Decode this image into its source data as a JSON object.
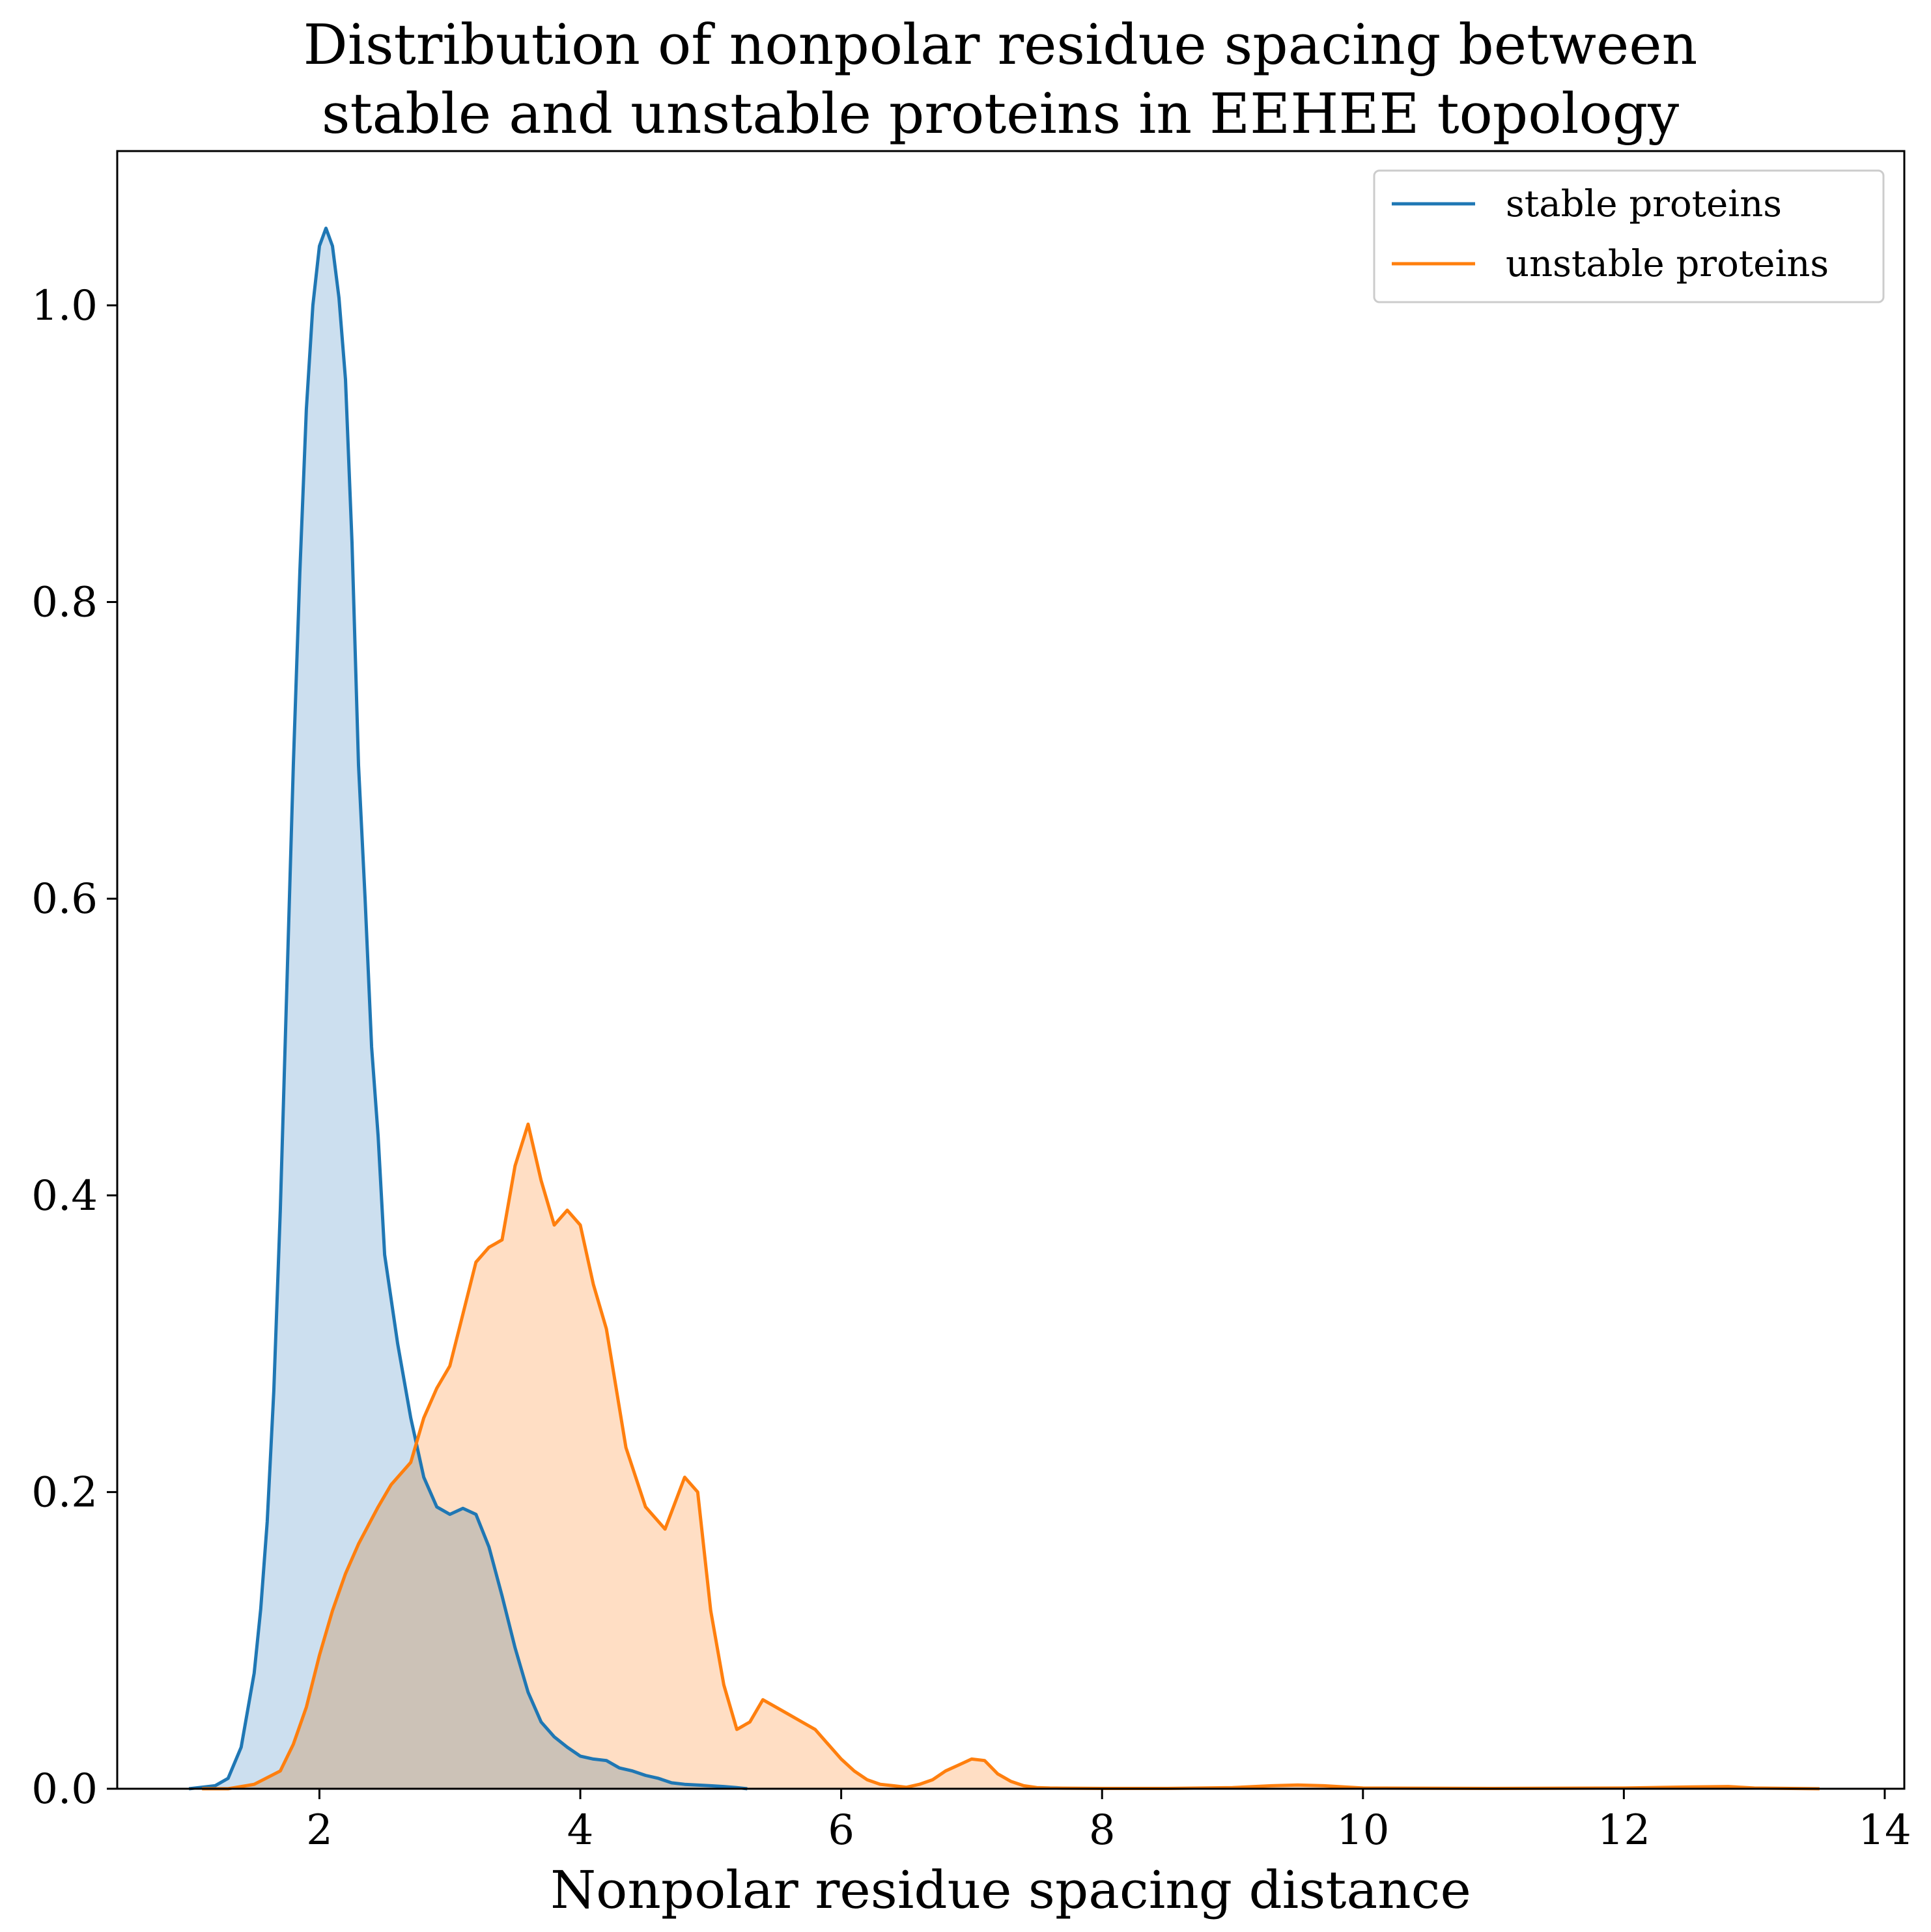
{
  "chart_data": {
    "type": "area",
    "title_lines": [
      "Distribution of nonpolar residue spacing between",
      "stable and unstable proteins in EEHEE topology"
    ],
    "xlabel": "Nonpolar residue spacing distance",
    "ylabel": "",
    "xlim": [
      0.45,
      14.15
    ],
    "ylim": [
      0.0,
      1.104
    ],
    "xticks": [
      2,
      4,
      6,
      8,
      10,
      12,
      14
    ],
    "xtick_labels": [
      "2",
      "4",
      "6",
      "8",
      "10",
      "12",
      "14"
    ],
    "yticks": [
      0.0,
      0.2,
      0.4,
      0.6,
      0.8,
      1.0
    ],
    "ytick_labels": [
      "0.0",
      "0.2",
      "0.4",
      "0.6",
      "0.8",
      "1.0"
    ],
    "grid": false,
    "legend_position": "upper right",
    "series": [
      {
        "name": "stable proteins",
        "color": "#1f77b4",
        "fill_color": "#c6dbed",
        "fill_opacity": 0.9,
        "x": [
          1.0,
          1.2,
          1.3,
          1.4,
          1.5,
          1.55,
          1.6,
          1.65,
          1.7,
          1.75,
          1.8,
          1.85,
          1.9,
          1.95,
          2.0,
          2.05,
          2.1,
          2.15,
          2.2,
          2.25,
          2.3,
          2.35,
          2.4,
          2.45,
          2.5,
          2.55,
          2.6,
          2.7,
          2.8,
          2.9,
          3.0,
          3.1,
          3.2,
          3.3,
          3.4,
          3.5,
          3.6,
          3.7,
          3.8,
          3.9,
          4.0,
          4.1,
          4.2,
          4.3,
          4.4,
          4.5,
          4.6,
          4.7,
          4.8,
          5.0,
          5.1,
          5.2,
          5.28
        ],
        "y": [
          0.0,
          0.002,
          0.007,
          0.028,
          0.078,
          0.121,
          0.18,
          0.268,
          0.39,
          0.54,
          0.69,
          0.82,
          0.93,
          1.0,
          1.04,
          1.052,
          1.04,
          1.005,
          0.95,
          0.84,
          0.69,
          0.6,
          0.5,
          0.44,
          0.36,
          0.33,
          0.3,
          0.25,
          0.21,
          0.19,
          0.185,
          0.189,
          0.185,
          0.163,
          0.13,
          0.095,
          0.065,
          0.045,
          0.035,
          0.028,
          0.022,
          0.02,
          0.019,
          0.014,
          0.012,
          0.009,
          0.007,
          0.004,
          0.003,
          0.002,
          0.0015,
          0.0008,
          0.0
        ]
      },
      {
        "name": "unstable proteins",
        "color": "#ff7f0e",
        "fill_color": "#ffdabe",
        "fill_opacity": 0.9,
        "x": [
          1.1,
          1.3,
          1.5,
          1.7,
          1.8,
          1.9,
          2.0,
          2.1,
          2.2,
          2.3,
          2.45,
          2.55,
          2.7,
          2.8,
          2.9,
          3.0,
          3.1,
          3.2,
          3.3,
          3.4,
          3.5,
          3.6,
          3.7,
          3.8,
          3.9,
          4.0,
          4.1,
          4.2,
          4.35,
          4.5,
          4.65,
          4.8,
          4.9,
          5.0,
          5.1,
          5.2,
          5.3,
          5.4,
          5.5,
          5.6,
          5.7,
          5.8,
          5.9,
          6.0,
          6.1,
          6.2,
          6.3,
          6.4,
          6.5,
          6.6,
          6.7,
          6.8,
          6.9,
          7.0,
          7.1,
          7.2,
          7.3,
          7.4,
          7.5,
          7.6,
          7.7,
          7.8,
          8.0,
          8.5,
          9.0,
          9.3,
          9.5,
          9.7,
          10.0,
          11.0,
          12.0,
          12.5,
          12.8,
          13.0,
          13.5
        ],
        "y": [
          0.0,
          0.0,
          0.003,
          0.012,
          0.03,
          0.055,
          0.09,
          0.12,
          0.145,
          0.165,
          0.19,
          0.205,
          0.22,
          0.25,
          0.27,
          0.285,
          0.32,
          0.355,
          0.365,
          0.37,
          0.42,
          0.448,
          0.41,
          0.38,
          0.39,
          0.38,
          0.34,
          0.31,
          0.23,
          0.19,
          0.175,
          0.21,
          0.2,
          0.12,
          0.07,
          0.04,
          0.045,
          0.06,
          0.055,
          0.05,
          0.045,
          0.04,
          0.03,
          0.02,
          0.012,
          0.006,
          0.003,
          0.002,
          0.001,
          0.003,
          0.006,
          0.012,
          0.016,
          0.02,
          0.019,
          0.01,
          0.005,
          0.002,
          0.0008,
          0.0005,
          0.0004,
          0.0003,
          0.0002,
          0.0002,
          0.0008,
          0.002,
          0.0025,
          0.002,
          0.0005,
          0.0002,
          0.0005,
          0.0012,
          0.0015,
          0.0005,
          0.0
        ]
      }
    ]
  }
}
